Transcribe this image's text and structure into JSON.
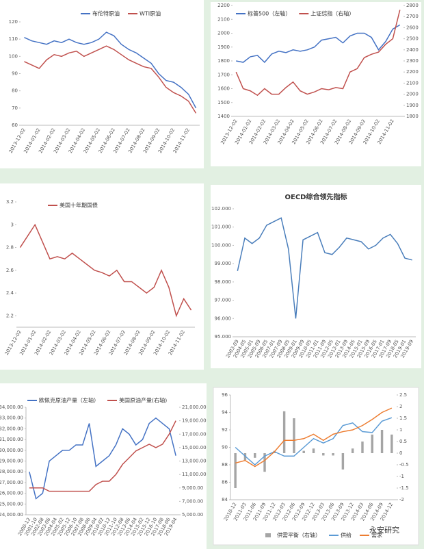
{
  "chart_data": [
    {
      "type": "line",
      "ylim": [
        60,
        120
      ],
      "yticks": [
        60,
        70,
        80,
        90,
        100,
        110,
        120
      ],
      "categories": [
        "2013-12-02",
        null,
        "2014-01-02",
        null,
        "2014-02-02",
        null,
        "2014-03-02",
        null,
        "2014-04-02",
        null,
        "2014-05-02",
        null,
        "2014-06-02",
        null,
        "2014-07-02",
        null,
        "2014-08-02",
        null,
        "2014-09-02",
        null,
        "2014-10-02",
        null,
        "2014-11-02",
        null
      ],
      "series": [
        {
          "name": "布伦特原油",
          "color": "#4472c4",
          "values": [
            111,
            109,
            108,
            107,
            109,
            108,
            110,
            108,
            107,
            108,
            110,
            114,
            112,
            107,
            104,
            102,
            99,
            96,
            90,
            86,
            85,
            82,
            78,
            70
          ]
        },
        {
          "name": "WTI原油",
          "color": "#c0504d",
          "values": [
            97,
            95,
            93,
            98,
            101,
            100,
            102,
            103,
            100,
            102,
            104,
            106,
            104,
            101,
            98,
            96,
            94,
            93,
            88,
            82,
            79,
            77,
            74,
            67
          ]
        }
      ]
    },
    {
      "type": "line",
      "ylim": [
        1400,
        2200
      ],
      "yticks": [
        1400,
        1500,
        1600,
        1700,
        1800,
        1900,
        2000,
        2100,
        2200
      ],
      "y2lim": [
        1800,
        2800
      ],
      "y2ticks": [
        1800,
        1900,
        2000,
        2100,
        2200,
        2300,
        2400,
        2500,
        2600,
        2700,
        2800
      ],
      "categories": [
        "2013-12-02",
        null,
        "2014-01-02",
        null,
        "2014-02-02",
        null,
        "2014-03-02",
        null,
        "2014-04-02",
        null,
        "2014-05-02",
        null,
        "2014-06-02",
        null,
        "2014-07-02",
        null,
        "2014-08-02",
        null,
        "2014-09-02",
        null,
        "2014-10-02",
        null,
        "2014-11-02",
        null
      ],
      "series": [
        {
          "name": "标普500（左轴）",
          "color": "#4472c4",
          "values": [
            1800,
            1790,
            1830,
            1840,
            1790,
            1850,
            1870,
            1860,
            1880,
            1870,
            1880,
            1900,
            1950,
            1960,
            1970,
            1930,
            1980,
            2000,
            2000,
            1970,
            1880,
            1940,
            2030,
            2060
          ]
        },
        {
          "name": "上证综指（右轴）",
          "color": "#c0504d",
          "axis": "y2",
          "values": [
            2200,
            2050,
            2030,
            1990,
            2050,
            2000,
            2000,
            2060,
            2110,
            2030,
            2000,
            2020,
            2050,
            2040,
            2060,
            2050,
            2200,
            2230,
            2330,
            2360,
            2380,
            2450,
            2500,
            2760
          ]
        }
      ]
    },
    {
      "type": "line",
      "ylim": [
        2.1,
        3.2
      ],
      "yticks": [
        2.2,
        2.4,
        2.6,
        2.8,
        3,
        3.2
      ],
      "categories": [
        "2013-12-02",
        null,
        "2014-01-02",
        null,
        "2014-02-02",
        null,
        "2014-03-02",
        null,
        "2014-04-02",
        null,
        "2014-05-02",
        null,
        "2014-06-02",
        null,
        "2014-07-02",
        null,
        "2014-08-02",
        null,
        "2014-09-02",
        null,
        "2014-10-02",
        null,
        "2014-11-02",
        null
      ],
      "series": [
        {
          "name": "美国十年期国债",
          "color": "#c0504d",
          "values": [
            2.8,
            2.9,
            3.0,
            2.85,
            2.7,
            2.72,
            2.7,
            2.75,
            2.7,
            2.65,
            2.6,
            2.58,
            2.55,
            2.6,
            2.5,
            2.5,
            2.45,
            2.4,
            2.45,
            2.6,
            2.45,
            2.2,
            2.35,
            2.25
          ]
        }
      ]
    },
    {
      "type": "line",
      "title": "OECD综合领先指标",
      "ylim": [
        95,
        102
      ],
      "yticks": [
        {
          "value": 95,
          "label": "95.000"
        },
        {
          "value": 96,
          "label": "96.000"
        },
        {
          "value": 97,
          "label": "97.000"
        },
        {
          "value": 98,
          "label": "98.000"
        },
        {
          "value": 99,
          "label": "99.000"
        },
        {
          "value": 100,
          "label": "100.000"
        },
        {
          "value": 101,
          "label": "101.000"
        },
        {
          "value": 102,
          "label": "102.000"
        }
      ],
      "categories": [
        "2003-09",
        "2004-05",
        "2005-01",
        "2005-09",
        "2006-05",
        "2007-01",
        "2007-09",
        "2008-05",
        "2009-01",
        "2009-09",
        "2010-05",
        "2011-01",
        "2011-09",
        "2012-05",
        "2013-01",
        "2013-09",
        "2014-05",
        "2015-01",
        "2015-09",
        "2016-05",
        "2017-01",
        "2017-09",
        "2018-05",
        "2019-01",
        "2019-09"
      ],
      "series": [
        {
          "color": "#4a7ebb",
          "values": [
            98.6,
            100.4,
            100.1,
            100.4,
            101.1,
            101.3,
            101.5,
            99.8,
            96.0,
            100.3,
            100.5,
            100.7,
            99.6,
            99.5,
            99.9,
            100.4,
            100.3,
            100.2,
            99.8,
            100.0,
            100.4,
            100.6,
            100.1,
            99.3,
            99.2
          ]
        }
      ]
    },
    {
      "type": "line",
      "ylim": [
        24000,
        34000
      ],
      "yticks": [
        {
          "value": 24000,
          "label": "24,000.00"
        },
        {
          "value": 25000,
          "label": "25,000.00"
        },
        {
          "value": 26000,
          "label": "26,000.00"
        },
        {
          "value": 27000,
          "label": "27,000.00"
        },
        {
          "value": 28000,
          "label": "28,000.00"
        },
        {
          "value": 29000,
          "label": "29,000.00"
        },
        {
          "value": 30000,
          "label": "30,000.00"
        },
        {
          "value": 31000,
          "label": "31,000.00"
        },
        {
          "value": 32000,
          "label": "32,000.00"
        },
        {
          "value": 33000,
          "label": "33,000.00"
        },
        {
          "value": 34000,
          "label": "34,000.00"
        }
      ],
      "y2lim": [
        5000,
        21000
      ],
      "y2ticks": [
        {
          "value": 5000,
          "label": "5,000.00"
        },
        {
          "value": 7000,
          "label": "7,000.00"
        },
        {
          "value": 9000,
          "label": "9,000.00"
        },
        {
          "value": 11000,
          "label": "11,000.00"
        },
        {
          "value": 13000,
          "label": "13,000.00"
        },
        {
          "value": 15000,
          "label": "15,000.00"
        },
        {
          "value": 17000,
          "label": "17,000.00"
        },
        {
          "value": 19000,
          "label": "19,000.00"
        },
        {
          "value": 21000,
          "label": "21,000.00"
        }
      ],
      "categories": [
        "2000-12",
        "2001-10",
        "2002-08",
        "2003-06",
        "2004-04",
        "2005-02",
        "2005-12",
        "2006-10",
        "2007-08",
        "2008-06",
        "2009-04",
        "2010-02",
        "2010-12",
        "2011-10",
        "2012-08",
        "2013-06",
        "2014-04",
        "2015-02",
        "2015-12",
        "2016-10",
        "2017-08",
        "2018-06",
        "2019-04"
      ],
      "series": [
        {
          "name": "欧佩克原油产量（左轴）",
          "color": "#4472c4",
          "values": [
            28000,
            25500,
            26000,
            29000,
            29500,
            30000,
            30000,
            30500,
            30500,
            32500,
            28500,
            29000,
            29500,
            30500,
            32000,
            31500,
            30500,
            31000,
            32500,
            33000,
            32500,
            32000,
            29500
          ]
        },
        {
          "name": "美国原油产量(右轴)",
          "color": "#c0504d",
          "axis": "y2",
          "values": [
            9000,
            9000,
            9000,
            8500,
            8500,
            8500,
            8500,
            8500,
            8500,
            8500,
            9500,
            10000,
            10000,
            11000,
            12500,
            13500,
            14500,
            15000,
            15500,
            15000,
            15500,
            17000,
            19000
          ]
        }
      ]
    },
    {
      "type": "combo",
      "ylim": [
        84,
        96
      ],
      "yticks": [
        84,
        86,
        88,
        90,
        92,
        94,
        96
      ],
      "y2lim": [
        -2,
        2.5
      ],
      "y2ticks": [
        -2,
        -1.5,
        -1,
        -0.5,
        0,
        0.5,
        1,
        1.5,
        2,
        2.5
      ],
      "categories": [
        "2010-12",
        "2011-03",
        "2011-06",
        "2011-09",
        "2011-12",
        "2012-03",
        "2012-06",
        "2012-09",
        "2012-12",
        "2013-03",
        "2013-06",
        "2013-09",
        "2013-12",
        "2014-03",
        "2014-06",
        "2014-09",
        "2014-12"
      ],
      "series": [
        {
          "name": "供需平衡（右轴）",
          "color": "#a5a5a5",
          "type": "bar",
          "axis": "y2",
          "values": [
            -1.5,
            -0.3,
            -0.2,
            -0.8,
            0.1,
            1.8,
            1.5,
            0.1,
            0.2,
            -0.1,
            -0.1,
            -0.7,
            0.2,
            0.5,
            0.8,
            1.0,
            0.8
          ]
        },
        {
          "name": "供给",
          "color": "#5b9bd5",
          "values": [
            90,
            89,
            88,
            89,
            89.5,
            89,
            89,
            90,
            91,
            90.5,
            91,
            92.5,
            92.8,
            91.8,
            91.7,
            93,
            93.4
          ]
        },
        {
          "name": "需求",
          "color": "#ed7d31",
          "values": [
            88.2,
            88.5,
            87.8,
            88.5,
            89.5,
            90.8,
            90.8,
            91,
            91.5,
            90.8,
            91.5,
            91.8,
            92,
            92.5,
            93.2,
            94,
            94.5
          ]
        }
      ]
    }
  ],
  "watermark": "永安研究"
}
